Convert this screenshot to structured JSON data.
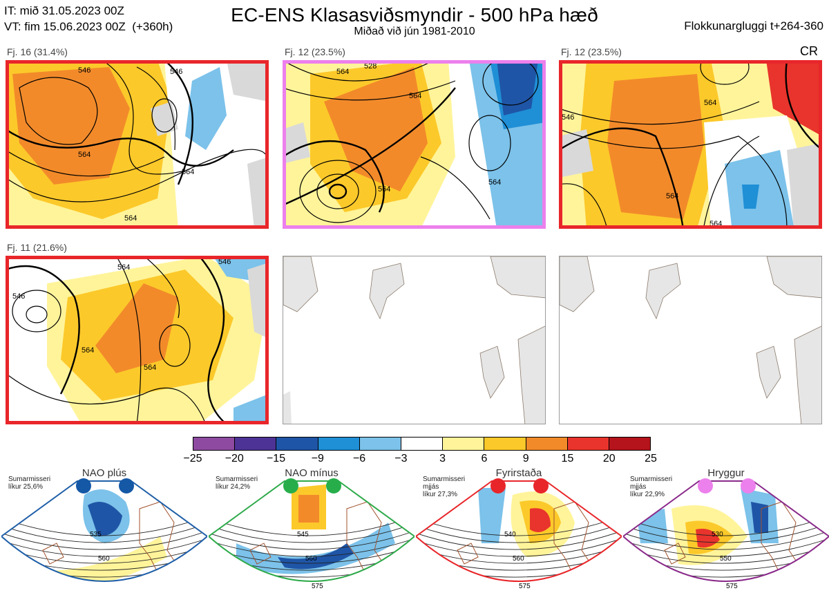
{
  "header": {
    "init_line": "IT: mið 31.05.2023 00Z",
    "valid_line": "VT: fim 15.06.2023 00Z  (+360h)",
    "title": "EC-ENS Klasasviðsmyndir - 500 hPa hæð",
    "subtitle": "Miðað við jún 1981-2010",
    "window": "Flokkunargluggi t+264-360",
    "cr": "CR"
  },
  "panels": [
    {
      "label": "Fj. 16 (31.4%)",
      "contours": [
        "546",
        "564",
        "564",
        "564",
        "546"
      ]
    },
    {
      "label": "Fj. 12 (23.5%)",
      "contours": [
        "528",
        "564",
        "564",
        "564",
        "564"
      ]
    },
    {
      "label": "Fj. 12 (23.5%)",
      "contours": [
        "546",
        "564",
        "564",
        "564"
      ]
    },
    {
      "label": "Fj. 11 (21.6%)",
      "contours": [
        "546",
        "564",
        "564",
        "546",
        "564"
      ]
    }
  ],
  "colorbar": {
    "ticks": [
      "−25",
      "−20",
      "−15",
      "−9",
      "−6",
      "−3",
      "3",
      "6",
      "9",
      "15",
      "20",
      "25"
    ],
    "colors": [
      "#8e4aa0",
      "#4e3396",
      "#1f55a6",
      "#1f8fd6",
      "#7cc2ea",
      "#ffffff",
      "#fff49a",
      "#fcc92a",
      "#f28a2a",
      "#e8342c",
      "#b5141c"
    ]
  },
  "regimes": [
    {
      "name": "NAO plús",
      "season": "Sumarmisseri",
      "line2": "",
      "prob": "líkur 25,6%",
      "contours": [
        "535",
        "560"
      ],
      "color": "#1f5fa8",
      "dot": "#1458a6"
    },
    {
      "name": "NAO mínus",
      "season": "Sumarmisseri",
      "line2": "",
      "prob": "líkur 24,2%",
      "contours": [
        "545",
        "560",
        "575"
      ],
      "color": "#2eaa4a",
      "dot": "#27ae4b"
    },
    {
      "name": "Fyrirstaða",
      "season": "Sumarmisseri",
      "line2": "mjjás",
      "prob": "líkur 27,3%",
      "contours": [
        "540",
        "560",
        "575"
      ],
      "color": "#e8262a",
      "dot": "#e8262a"
    },
    {
      "name": "Hryggur",
      "season": "Sumarmisseri",
      "line2": "mjjás",
      "prob": "líkur 22,9%",
      "contours": [
        "530",
        "550",
        "575"
      ],
      "color": "#8a2a8a",
      "dot": "#ec80ec"
    }
  ]
}
